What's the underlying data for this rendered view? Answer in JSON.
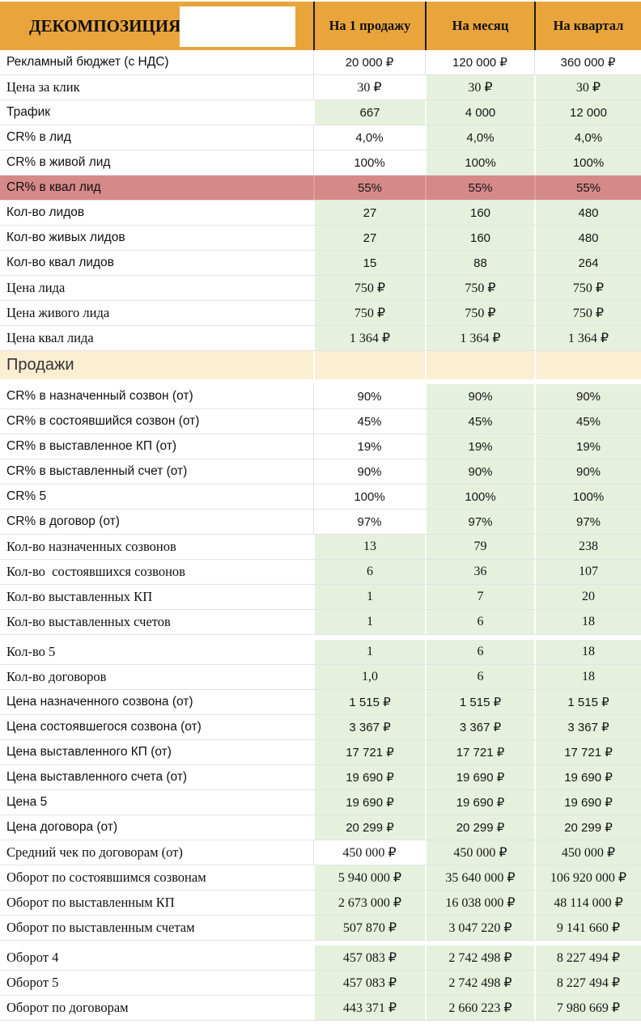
{
  "header": {
    "title": "ДЕКОМПОЗИЦИЯ",
    "columns": [
      "На 1 продажу",
      "На месяц",
      "На квартал"
    ]
  },
  "colors": {
    "header_bg": "#E9A43C",
    "green_cell": "#E5F1DC",
    "red_cell": "#D58988",
    "section_bg": "#FBEED3"
  },
  "rows": [
    {
      "type": "data",
      "font": "sans",
      "label": "Рекламный бюджет (с НДС)",
      "values": [
        "20 000 ₽",
        "120 000 ₽",
        "360 000 ₽"
      ],
      "bg": [
        "white",
        "white",
        "white"
      ],
      "label_bg": "white"
    },
    {
      "type": "data",
      "font": "serif",
      "label": "Цена за клик",
      "values": [
        "30 ₽",
        "30 ₽",
        "30 ₽"
      ],
      "bg": [
        "white",
        "green",
        "green"
      ],
      "label_bg": "white"
    },
    {
      "type": "data",
      "font": "sans",
      "label": "Трафик",
      "values": [
        "667",
        "4 000",
        "12 000"
      ],
      "bg": [
        "green",
        "green",
        "green"
      ],
      "label_bg": "white"
    },
    {
      "type": "data",
      "font": "sans",
      "label": "CR% в лид",
      "values": [
        "4,0%",
        "4,0%",
        "4,0%"
      ],
      "bg": [
        "white",
        "green",
        "green"
      ],
      "label_bg": "white"
    },
    {
      "type": "data",
      "font": "sans",
      "label": "CR% в живой лид",
      "values": [
        "100%",
        "100%",
        "100%"
      ],
      "bg": [
        "white",
        "green",
        "green"
      ],
      "label_bg": "white"
    },
    {
      "type": "data",
      "font": "sans",
      "label": "CR% в квал лид",
      "values": [
        "55%",
        "55%",
        "55%"
      ],
      "bg": [
        "red",
        "red",
        "red"
      ],
      "label_bg": "red"
    },
    {
      "type": "data",
      "font": "sans",
      "label": "Кол-во лидов",
      "values": [
        "27",
        "160",
        "480"
      ],
      "bg": [
        "green",
        "green",
        "green"
      ],
      "label_bg": "white"
    },
    {
      "type": "data",
      "font": "sans",
      "label": "Кол-во живых лидов",
      "values": [
        "27",
        "160",
        "480"
      ],
      "bg": [
        "green",
        "green",
        "green"
      ],
      "label_bg": "white"
    },
    {
      "type": "data",
      "font": "sans",
      "label": "Кол-во квал лидов",
      "values": [
        "15",
        "88",
        "264"
      ],
      "bg": [
        "green",
        "green",
        "green"
      ],
      "label_bg": "white"
    },
    {
      "type": "data",
      "font": "serif",
      "label": "Цена лида",
      "values": [
        "750 ₽",
        "750 ₽",
        "750 ₽"
      ],
      "bg": [
        "green",
        "green",
        "green"
      ],
      "label_bg": "white"
    },
    {
      "type": "data",
      "font": "serif",
      "label": "Цена живого лида",
      "values": [
        "750 ₽",
        "750 ₽",
        "750 ₽"
      ],
      "bg": [
        "green",
        "green",
        "green"
      ],
      "label_bg": "white"
    },
    {
      "type": "data",
      "font": "serif",
      "label": "Цена квал лида",
      "values": [
        "1 364 ₽",
        "1 364 ₽",
        "1 364 ₽"
      ],
      "bg": [
        "green",
        "green",
        "green"
      ],
      "label_bg": "white"
    },
    {
      "type": "section",
      "label": "Продажи",
      "values": [
        "",
        "",
        ""
      ]
    },
    {
      "type": "spacer"
    },
    {
      "type": "data",
      "font": "sans",
      "label": "CR% в назначенный созвон (от)",
      "values": [
        "90%",
        "90%",
        "90%"
      ],
      "bg": [
        "white",
        "green",
        "green"
      ],
      "label_bg": "white"
    },
    {
      "type": "data",
      "font": "sans",
      "label": "CR% в состоявшийся созвон (от)",
      "values": [
        "45%",
        "45%",
        "45%"
      ],
      "bg": [
        "white",
        "green",
        "green"
      ],
      "label_bg": "white"
    },
    {
      "type": "data",
      "font": "sans",
      "label": "CR% в выставленное КП (от)",
      "values": [
        "19%",
        "19%",
        "19%"
      ],
      "bg": [
        "white",
        "green",
        "green"
      ],
      "label_bg": "white"
    },
    {
      "type": "data",
      "font": "sans",
      "label": "CR% в выставленный счет (от)",
      "values": [
        "90%",
        "90%",
        "90%"
      ],
      "bg": [
        "white",
        "green",
        "green"
      ],
      "label_bg": "white"
    },
    {
      "type": "data",
      "font": "sans",
      "label": "CR% 5",
      "values": [
        "100%",
        "100%",
        "100%"
      ],
      "bg": [
        "white",
        "green",
        "green"
      ],
      "label_bg": "white"
    },
    {
      "type": "data",
      "font": "sans",
      "label": "CR% в договор (от)",
      "values": [
        "97%",
        "97%",
        "97%"
      ],
      "bg": [
        "white",
        "green",
        "green"
      ],
      "label_bg": "white"
    },
    {
      "type": "data",
      "font": "serif",
      "label": "Кол-во назначенных созвонов",
      "values": [
        "13",
        "79",
        "238"
      ],
      "bg": [
        "green",
        "green",
        "green"
      ],
      "label_bg": "white"
    },
    {
      "type": "data",
      "font": "serif",
      "label": "Кол-во  состоявшихся созвонов",
      "values": [
        "6",
        "36",
        "107"
      ],
      "bg": [
        "green",
        "green",
        "green"
      ],
      "label_bg": "white"
    },
    {
      "type": "data",
      "font": "serif",
      "label": "Кол-во выставленных КП",
      "values": [
        "1",
        "7",
        "20"
      ],
      "bg": [
        "green",
        "green",
        "green"
      ],
      "label_bg": "white"
    },
    {
      "type": "data",
      "font": "serif",
      "label": "Кол-во выставленных счетов",
      "values": [
        "1",
        "6",
        "18"
      ],
      "bg": [
        "green",
        "green",
        "green"
      ],
      "label_bg": "white"
    },
    {
      "type": "spacer"
    },
    {
      "type": "data",
      "font": "serif",
      "label": "Кол-во 5",
      "values": [
        "1",
        "6",
        "18"
      ],
      "bg": [
        "green",
        "green",
        "green"
      ],
      "label_bg": "white"
    },
    {
      "type": "data",
      "font": "serif",
      "label": "Кол-во договоров",
      "values": [
        "1,0",
        "6",
        "18"
      ],
      "bg": [
        "green",
        "green",
        "green"
      ],
      "label_bg": "white"
    },
    {
      "type": "data",
      "font": "sans",
      "label": "Цена назначенного созвона (от)",
      "values": [
        "1 515 ₽",
        "1 515 ₽",
        "1 515 ₽"
      ],
      "bg": [
        "green",
        "green",
        "green"
      ],
      "label_bg": "white"
    },
    {
      "type": "data",
      "font": "sans",
      "label": "Цена состоявшегося созвона (от)",
      "values": [
        "3 367 ₽",
        "3 367 ₽",
        "3 367 ₽"
      ],
      "bg": [
        "green",
        "green",
        "green"
      ],
      "label_bg": "white"
    },
    {
      "type": "data",
      "font": "sans",
      "label": "Цена выставленного КП (от)",
      "values": [
        "17 721 ₽",
        "17 721 ₽",
        "17 721 ₽"
      ],
      "bg": [
        "green",
        "green",
        "green"
      ],
      "label_bg": "white"
    },
    {
      "type": "data",
      "font": "sans",
      "label": "Цена выставленного счета (от)",
      "values": [
        "19 690 ₽",
        "19 690 ₽",
        "19 690 ₽"
      ],
      "bg": [
        "green",
        "green",
        "green"
      ],
      "label_bg": "white"
    },
    {
      "type": "data",
      "font": "sans",
      "label": "Цена 5",
      "values": [
        "19 690 ₽",
        "19 690 ₽",
        "19 690 ₽"
      ],
      "bg": [
        "green",
        "green",
        "green"
      ],
      "label_bg": "white"
    },
    {
      "type": "data",
      "font": "sans",
      "label": "Цена договора (от)",
      "values": [
        "20 299 ₽",
        "20 299 ₽",
        "20 299 ₽"
      ],
      "bg": [
        "green",
        "green",
        "green"
      ],
      "label_bg": "white"
    },
    {
      "type": "data",
      "font": "serif",
      "label": "Средний чек по договорам (от)",
      "values": [
        "450 000 ₽",
        "450 000 ₽",
        "450 000 ₽"
      ],
      "bg": [
        "white",
        "green",
        "green"
      ],
      "label_bg": "white"
    },
    {
      "type": "data",
      "font": "serif",
      "label": "Оборот по состоявшимся созвонам",
      "values": [
        "5 940 000 ₽",
        "35 640 000 ₽",
        "106 920 000 ₽"
      ],
      "bg": [
        "green",
        "green",
        "green"
      ],
      "label_bg": "white"
    },
    {
      "type": "data",
      "font": "serif",
      "label": "Оборот по выставленным КП",
      "values": [
        "2 673 000 ₽",
        "16 038 000 ₽",
        "48 114 000 ₽"
      ],
      "bg": [
        "green",
        "green",
        "green"
      ],
      "label_bg": "white"
    },
    {
      "type": "data",
      "font": "serif",
      "label": "Оборот по выставленным счетам",
      "values": [
        "507 870 ₽",
        "3 047 220 ₽",
        "9 141 660 ₽"
      ],
      "bg": [
        "green",
        "green",
        "green"
      ],
      "label_bg": "white"
    },
    {
      "type": "spacer"
    },
    {
      "type": "data",
      "font": "serif",
      "label": "Оборот 4",
      "values": [
        "457 083 ₽",
        "2 742 498 ₽",
        "8 227 494 ₽"
      ],
      "bg": [
        "green",
        "green",
        "green"
      ],
      "label_bg": "white"
    },
    {
      "type": "data",
      "font": "serif",
      "label": "Оборот 5",
      "values": [
        "457 083 ₽",
        "2 742 498 ₽",
        "8 227 494 ₽"
      ],
      "bg": [
        "green",
        "green",
        "green"
      ],
      "label_bg": "white"
    },
    {
      "type": "data",
      "font": "serif",
      "label": "Оборот по договорам",
      "values": [
        "443 371 ₽",
        "2 660 223 ₽",
        "7 980 669 ₽"
      ],
      "bg": [
        "green",
        "green",
        "green"
      ],
      "label_bg": "white"
    }
  ]
}
